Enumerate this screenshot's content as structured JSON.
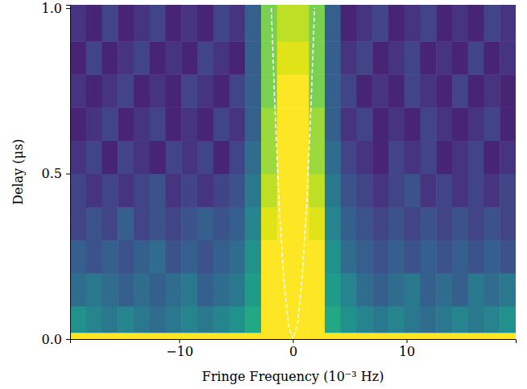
{
  "chart_data": {
    "type": "heatmap",
    "xlabel": "Fringe Frequency (10⁻³ Hz)",
    "ylabel": "Delay (μs)",
    "xlim": [
      -19.6,
      19.6
    ],
    "ylim": [
      0,
      1.01
    ],
    "xticks": [
      {
        "value": -10,
        "label": "−10"
      },
      0,
      10
    ],
    "yticks": [
      {
        "value": 0,
        "label": "0.0"
      },
      0.5,
      {
        "value": 1,
        "label": "1.0"
      }
    ],
    "zlim": [
      0,
      1
    ],
    "x_edges": [
      -19.6,
      -18.2,
      -16.8,
      -15.4,
      -14,
      -12.6,
      -11.2,
      -9.8,
      -8.4,
      -7,
      -5.6,
      -4.2,
      -2.8,
      -1.4,
      0,
      1.4,
      2.8,
      4.2,
      5.6,
      7,
      8.4,
      9.8,
      11.2,
      12.6,
      14,
      15.4,
      16.8,
      18.2,
      19.6
    ],
    "y_edges": [
      0,
      0.02,
      0.1,
      0.2,
      0.3,
      0.4,
      0.5,
      0.6,
      0.7,
      0.8,
      0.9,
      1.01
    ],
    "z": [
      [
        1,
        1,
        1,
        1,
        1,
        1,
        1,
        1,
        1,
        1,
        1,
        1,
        1,
        1,
        1,
        1,
        1,
        1,
        1,
        1,
        1,
        1,
        1,
        1,
        1,
        1,
        1,
        1
      ],
      [
        0.5,
        0.45,
        0.4,
        0.45,
        0.4,
        0.35,
        0.4,
        0.45,
        0.4,
        0.45,
        0.5,
        0.6,
        1,
        1,
        1,
        1,
        0.6,
        0.5,
        0.45,
        0.4,
        0.45,
        0.4,
        0.35,
        0.4,
        0.45,
        0.4,
        0.45,
        0.5
      ],
      [
        0.35,
        0.4,
        0.35,
        0.3,
        0.35,
        0.3,
        0.35,
        0.4,
        0.3,
        0.35,
        0.4,
        0.55,
        1,
        1,
        1,
        1,
        0.55,
        0.45,
        0.35,
        0.3,
        0.35,
        0.4,
        0.3,
        0.35,
        0.3,
        0.4,
        0.35,
        0.4
      ],
      [
        0.3,
        0.25,
        0.3,
        0.25,
        0.3,
        0.35,
        0.25,
        0.3,
        0.25,
        0.3,
        0.35,
        0.5,
        1,
        1,
        1,
        1,
        0.5,
        0.35,
        0.3,
        0.25,
        0.3,
        0.25,
        0.3,
        0.25,
        0.3,
        0.25,
        0.3,
        0.25
      ],
      [
        0.2,
        0.25,
        0.2,
        0.3,
        0.2,
        0.25,
        0.2,
        0.25,
        0.3,
        0.25,
        0.3,
        0.45,
        0.95,
        1,
        1,
        0.95,
        0.45,
        0.3,
        0.25,
        0.2,
        0.25,
        0.2,
        0.25,
        0.2,
        0.25,
        0.2,
        0.25,
        0.2
      ],
      [
        0.2,
        0.15,
        0.2,
        0.15,
        0.2,
        0.25,
        0.15,
        0.2,
        0.15,
        0.2,
        0.25,
        0.4,
        0.9,
        1,
        1,
        0.9,
        0.4,
        0.25,
        0.2,
        0.15,
        0.2,
        0.25,
        0.15,
        0.2,
        0.15,
        0.2,
        0.15,
        0.2
      ],
      [
        0.15,
        0.2,
        0.1,
        0.2,
        0.15,
        0.1,
        0.2,
        0.15,
        0.2,
        0.1,
        0.2,
        0.35,
        0.85,
        1,
        1,
        0.85,
        0.35,
        0.2,
        0.15,
        0.1,
        0.2,
        0.15,
        0.2,
        0.1,
        0.15,
        0.2,
        0.1,
        0.15
      ],
      [
        0.1,
        0.15,
        0.2,
        0.1,
        0.15,
        0.2,
        0.1,
        0.15,
        0.1,
        0.2,
        0.15,
        0.3,
        0.85,
        1,
        1,
        0.85,
        0.3,
        0.15,
        0.2,
        0.1,
        0.15,
        0.1,
        0.2,
        0.15,
        0.1,
        0.15,
        0.2,
        0.1
      ],
      [
        0.15,
        0.1,
        0.15,
        0.2,
        0.1,
        0.15,
        0.1,
        0.2,
        0.15,
        0.1,
        0.2,
        0.3,
        0.8,
        1,
        1,
        0.8,
        0.3,
        0.2,
        0.1,
        0.15,
        0.1,
        0.2,
        0.15,
        0.1,
        0.2,
        0.1,
        0.15,
        0.1
      ],
      [
        0.1,
        0.2,
        0.1,
        0.15,
        0.2,
        0.1,
        0.15,
        0.1,
        0.2,
        0.15,
        0.1,
        0.3,
        0.8,
        0.95,
        0.95,
        0.8,
        0.3,
        0.15,
        0.2,
        0.1,
        0.15,
        0.2,
        0.1,
        0.15,
        0.1,
        0.2,
        0.1,
        0.15
      ],
      [
        0.15,
        0.1,
        0.2,
        0.1,
        0.15,
        0.2,
        0.1,
        0.15,
        0.1,
        0.2,
        0.15,
        0.3,
        0.8,
        0.9,
        0.9,
        0.8,
        0.3,
        0.1,
        0.15,
        0.2,
        0.1,
        0.15,
        0.2,
        0.1,
        0.15,
        0.1,
        0.2,
        0.15
      ]
    ],
    "series": [
      {
        "type": "line",
        "color": "#ffffff",
        "line_style": "dashed",
        "x": [
          -1.9,
          -1.6,
          -1.2,
          -0.8,
          -0.4,
          0,
          0.4,
          0.8,
          1.2,
          1.6,
          1.9
        ],
        "values": [
          1.0,
          0.71,
          0.4,
          0.18,
          0.044,
          0,
          0.044,
          0.18,
          0.4,
          0.71,
          1.0
        ]
      }
    ]
  }
}
